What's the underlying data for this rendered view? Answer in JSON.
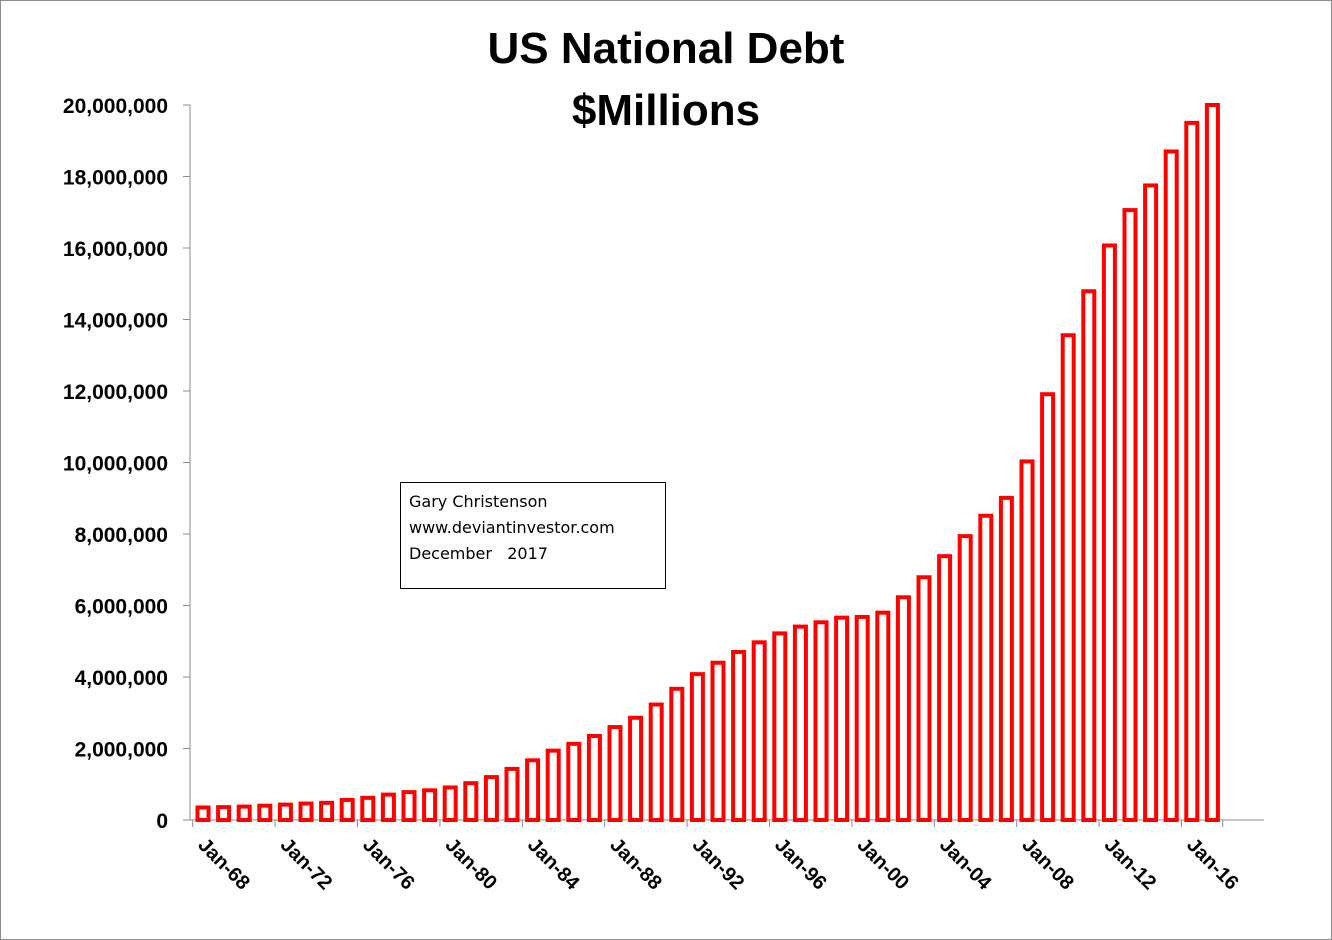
{
  "chart_data": {
    "type": "bar",
    "title": "US National Debt",
    "subtitle": "$Millions",
    "xlabel": "",
    "ylabel": "",
    "ylim": [
      0,
      20000000
    ],
    "yticks": [
      0,
      2000000,
      4000000,
      6000000,
      8000000,
      10000000,
      12000000,
      14000000,
      16000000,
      18000000,
      20000000
    ],
    "ytick_labels": [
      "0",
      "2,000,000",
      "4,000,000",
      "6,000,000",
      "8,000,000",
      "10,000,000",
      "12,000,000",
      "14,000,000",
      "16,000,000",
      "18,000,000",
      "20,000,000"
    ],
    "categories": [
      "Jan-68",
      "Jan-69",
      "Jan-70",
      "Jan-71",
      "Jan-72",
      "Jan-73",
      "Jan-74",
      "Jan-75",
      "Jan-76",
      "Jan-77",
      "Jan-78",
      "Jan-79",
      "Jan-80",
      "Jan-81",
      "Jan-82",
      "Jan-83",
      "Jan-84",
      "Jan-85",
      "Jan-86",
      "Jan-87",
      "Jan-88",
      "Jan-89",
      "Jan-90",
      "Jan-91",
      "Jan-92",
      "Jan-93",
      "Jan-94",
      "Jan-95",
      "Jan-96",
      "Jan-97",
      "Jan-98",
      "Jan-99",
      "Jan-00",
      "Jan-01",
      "Jan-02",
      "Jan-03",
      "Jan-04",
      "Jan-05",
      "Jan-06",
      "Jan-07",
      "Jan-08",
      "Jan-09",
      "Jan-10",
      "Jan-11",
      "Jan-12",
      "Jan-13",
      "Jan-14",
      "Jan-15",
      "Jan-16",
      "Jan-17"
    ],
    "x_tick_labels": [
      "Jan-68",
      "Jan-72",
      "Jan-76",
      "Jan-80",
      "Jan-84",
      "Jan-88",
      "Jan-92",
      "Jan-96",
      "Jan-00",
      "Jan-04",
      "Jan-08",
      "Jan-12",
      "Jan-16"
    ],
    "values": [
      350000,
      360000,
      375000,
      400000,
      430000,
      460000,
      480000,
      560000,
      620000,
      710000,
      780000,
      830000,
      910000,
      1030000,
      1200000,
      1430000,
      1670000,
      1940000,
      2130000,
      2350000,
      2600000,
      2860000,
      3230000,
      3670000,
      4080000,
      4400000,
      4700000,
      4970000,
      5220000,
      5410000,
      5530000,
      5660000,
      5680000,
      5800000,
      6230000,
      6790000,
      7380000,
      7940000,
      8510000,
      9010000,
      10030000,
      11910000,
      13560000,
      14790000,
      16070000,
      17060000,
      17750000,
      18700000,
      19500000,
      20000000
    ],
    "bar_color": "#ff0000",
    "bar_edge_color": "#e00000",
    "legend": "none",
    "grid": false
  },
  "annotation": {
    "lines": [
      "Gary Christenson",
      "www.deviantinvestor.com",
      "December   2017"
    ]
  }
}
